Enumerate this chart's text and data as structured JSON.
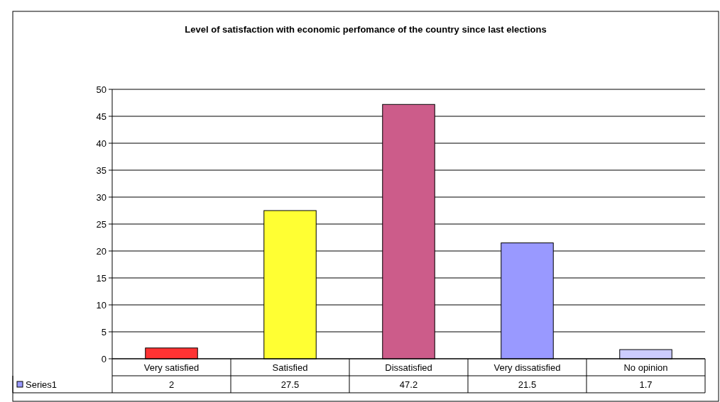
{
  "chart_data": {
    "type": "bar",
    "title": "Level of satisfaction with economic perfomance of the country since last elections",
    "categories": [
      "Very satisfied",
      "Satisfied",
      "Dissatisfied",
      "Very dissatisfied",
      "No opinion"
    ],
    "series": [
      {
        "name": "Series1",
        "color": "#9999ff",
        "colors": [
          "#ff3333",
          "#ffff33",
          "#cc5c8a",
          "#9999ff",
          "#ccccff"
        ],
        "values": [
          2,
          27.5,
          47.2,
          21.5,
          1.7
        ]
      }
    ],
    "ylim": [
      0,
      50
    ],
    "yticks": [
      0,
      5,
      10,
      15,
      20,
      25,
      30,
      35,
      40,
      45,
      50
    ],
    "grid": "y",
    "data_labels": true,
    "legend": "bottom"
  }
}
